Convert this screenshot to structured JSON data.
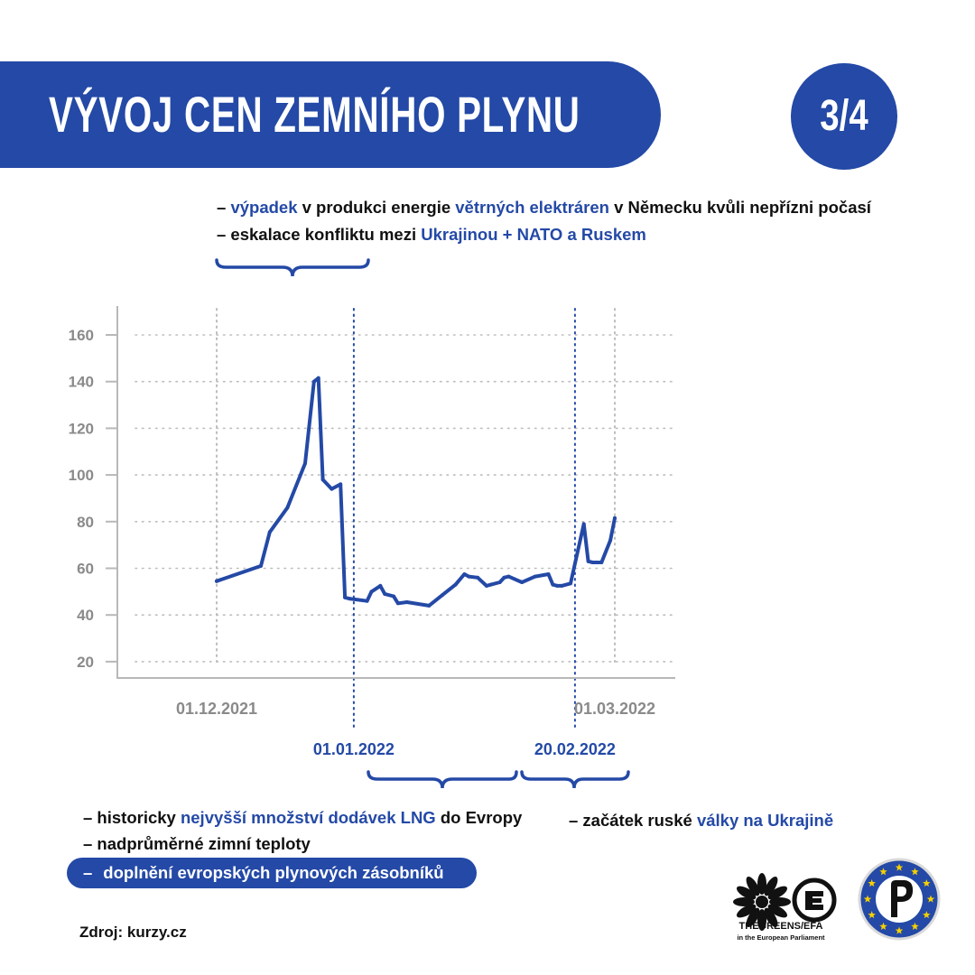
{
  "header": {
    "title": "VÝVOJ CEN ZEMNÍHO PLYNU",
    "page_indicator": "3/4"
  },
  "top_notes": {
    "line1": {
      "dash": "– ",
      "hl1": "výpadek",
      "t1": " v produkci energie ",
      "hl2": "větrných elektráren",
      "t2": " v Německu kvůli nepřízni počasí"
    },
    "line2": {
      "dash": "– eskalace konfliktu mezi ",
      "hl1": "Ukrajinou + NATO a Ruskem"
    }
  },
  "bottom_notes": {
    "line1": {
      "t1": "– historicky ",
      "hl1": "nejvyšší množství dodávek LNG",
      "t2": " do Evropy"
    },
    "line2": "– nadprůměrné zimní teploty",
    "pill": {
      "dash": "–",
      "text": "doplnění evropských plynových zásobníků"
    },
    "right": {
      "t1": "– začátek ruské ",
      "hl1": "války na Ukrajině"
    }
  },
  "source": "Zdroj: kurzy.cz",
  "logos": {
    "greens": {
      "text": "THEGREENS/EFA",
      "sub": "in the European Parliament"
    }
  },
  "colors": {
    "accent": "#2449a6",
    "grid": "#bdbdbd",
    "axis_text": "#8a8a8a"
  },
  "chart_data": {
    "type": "line",
    "yticks": [
      20,
      40,
      60,
      80,
      100,
      120,
      140,
      160
    ],
    "ylim": [
      13,
      170
    ],
    "xlim": [
      "2021-11-22",
      "2022-03-21"
    ],
    "grid": true,
    "date_markers": [
      {
        "label": "01.12.2021",
        "date": "2021-12-01",
        "style": "gray"
      },
      {
        "label": "01.01.2022",
        "date": "2022-01-01",
        "style": "blue"
      },
      {
        "label": "20.02.2022",
        "date": "2022-02-20",
        "style": "blue"
      },
      {
        "label": "01.03.2022",
        "date": "2022-03-01",
        "style": "gray"
      }
    ],
    "series": [
      {
        "x": [
          "2021-12-01",
          "2021-12-11",
          "2021-12-13",
          "2021-12-17",
          "2021-12-21",
          "2021-12-23",
          "2021-12-24",
          "2021-12-25",
          "2021-12-27",
          "2021-12-29",
          "2021-12-30",
          "2021-12-31",
          "2022-01-04",
          "2022-01-05",
          "2022-01-07",
          "2022-01-08",
          "2022-01-10",
          "2022-01-11",
          "2022-01-13",
          "2022-01-18",
          "2022-01-21",
          "2022-01-24",
          "2022-01-26",
          "2022-01-27",
          "2022-01-29",
          "2022-01-31",
          "2022-02-01",
          "2022-02-03",
          "2022-02-04",
          "2022-02-05",
          "2022-02-08",
          "2022-02-11",
          "2022-02-14",
          "2022-02-15",
          "2022-02-16",
          "2022-02-17",
          "2022-02-19",
          "2022-02-22",
          "2022-02-23",
          "2022-02-24",
          "2022-02-25",
          "2022-02-26",
          "2022-02-28",
          "2022-03-01"
        ],
        "values": [
          54.5,
          61,
          75.5,
          86,
          105,
          140,
          141.5,
          98,
          94,
          96,
          47.5,
          47,
          46,
          50,
          52.5,
          49,
          48,
          45,
          45.5,
          44,
          48.5,
          53,
          57.5,
          56.5,
          56,
          52.5,
          53,
          54,
          56,
          56.5,
          54,
          56.5,
          57.5,
          53,
          52.5,
          52.5,
          53.5,
          79,
          63,
          62.5,
          62.5,
          62.5,
          72,
          81.5
        ]
      }
    ]
  }
}
